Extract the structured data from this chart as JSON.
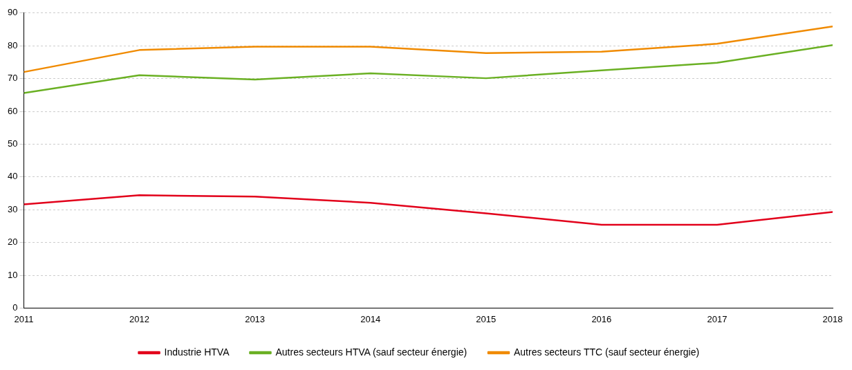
{
  "chart_data": {
    "type": "line",
    "x": [
      2011,
      2012,
      2013,
      2014,
      2015,
      2016,
      2017,
      2018
    ],
    "xlim": [
      2011,
      2018
    ],
    "xticks": [
      2011,
      2012,
      2013,
      2014,
      2015,
      2016,
      2017,
      2018
    ],
    "ylim": [
      0,
      90
    ],
    "yticks": [
      0,
      10,
      20,
      30,
      40,
      50,
      60,
      70,
      80,
      90
    ],
    "grid": "y",
    "legend": "bottom",
    "marker": "none",
    "line_style": "solid",
    "series": [
      {
        "name": "Industrie HTVA",
        "color": "#e2001a",
        "values": [
          31.6,
          34.4,
          34.0,
          32.1,
          28.9,
          25.4,
          25.4,
          29.3
        ]
      },
      {
        "name": "Autres secteurs HTVA (sauf secteur énergie)",
        "color": "#6ab023",
        "values": [
          65.6,
          71.0,
          69.7,
          71.6,
          70.1,
          72.5,
          74.8,
          80.2
        ]
      },
      {
        "name": "Autres secteurs TTC (sauf secteur énergie)",
        "color": "#f08a00",
        "values": [
          72.0,
          78.7,
          79.7,
          79.7,
          77.8,
          78.2,
          80.6,
          85.9
        ]
      }
    ]
  }
}
